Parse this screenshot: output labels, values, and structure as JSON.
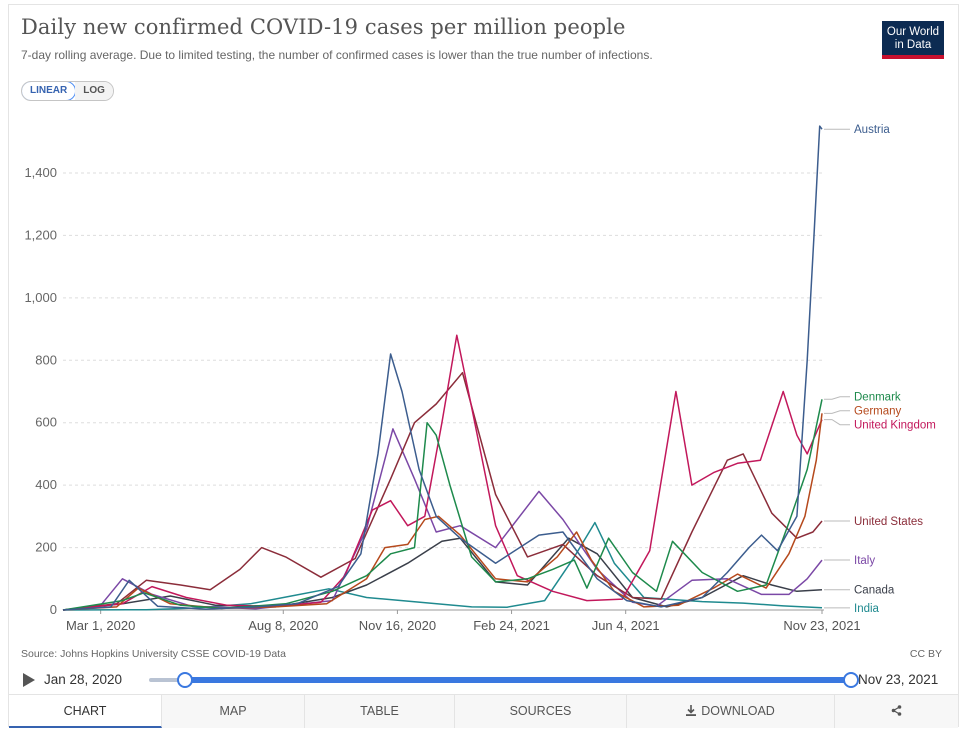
{
  "header": {
    "title": "Daily new confirmed COVID-19 cases per million people",
    "subtitle": "7-day rolling average. Due to limited testing, the number of confirmed cases is lower than the true number of infections.",
    "logo_line1": "Our World",
    "logo_line2": "in Data"
  },
  "scale_toggle": {
    "linear": "LINEAR",
    "log": "LOG",
    "selected": "LINEAR"
  },
  "footer": {
    "source": "Source: Johns Hopkins University CSSE COVID-19 Data",
    "license": "CC BY"
  },
  "timeline": {
    "start": "Jan 28, 2020",
    "end": "Nov 23, 2021"
  },
  "tabs": {
    "chart": "CHART",
    "map": "MAP",
    "table": "TABLE",
    "sources": "SOURCES",
    "download": "DOWNLOAD"
  },
  "chart_data": {
    "type": "line",
    "title": "Daily new confirmed COVID-19 cases per million people",
    "ylim": [
      0,
      1560
    ],
    "y_ticks": [
      0,
      200,
      400,
      600,
      800,
      1000,
      1200,
      1400
    ],
    "y_tick_labels": [
      "0",
      "200",
      "400",
      "600",
      "800",
      "1,000",
      "1,200",
      "1,400"
    ],
    "x_tick_labels": [
      "Mar 1, 2020",
      "Aug 8, 2020",
      "Nov 16, 2020",
      "Feb 24, 2021",
      "Jun 4, 2021",
      "Nov 23, 2021"
    ],
    "x_ticks": [
      "2020-03-01",
      "2020-08-08",
      "2020-11-16",
      "2021-02-24",
      "2021-06-04",
      "2021-11-23"
    ],
    "x_range": [
      "2020-01-28",
      "2021-11-23"
    ],
    "grid": true,
    "legend": "right-end labels",
    "series": [
      {
        "name": "Austria",
        "color": "#3c5d8e",
        "points": [
          [
            "2020-01-28",
            0
          ],
          [
            "2020-03-10",
            10
          ],
          [
            "2020-03-26",
            95
          ],
          [
            "2020-04-20",
            12
          ],
          [
            "2020-06-01",
            3
          ],
          [
            "2020-07-15",
            10
          ],
          [
            "2020-08-20",
            20
          ],
          [
            "2020-09-25",
            75
          ],
          [
            "2020-10-15",
            180
          ],
          [
            "2020-10-30",
            500
          ],
          [
            "2020-11-10",
            820
          ],
          [
            "2020-11-20",
            700
          ],
          [
            "2020-12-05",
            450
          ],
          [
            "2020-12-20",
            300
          ],
          [
            "2021-01-10",
            230
          ],
          [
            "2021-02-10",
            150
          ],
          [
            "2021-03-20",
            240
          ],
          [
            "2021-04-10",
            250
          ],
          [
            "2021-05-10",
            100
          ],
          [
            "2021-06-05",
            30
          ],
          [
            "2021-07-05",
            10
          ],
          [
            "2021-08-10",
            40
          ],
          [
            "2021-09-01",
            120
          ],
          [
            "2021-09-20",
            200
          ],
          [
            "2021-10-01",
            240
          ],
          [
            "2021-10-15",
            190
          ],
          [
            "2021-11-01",
            300
          ],
          [
            "2021-11-10",
            800
          ],
          [
            "2021-11-16",
            1200
          ],
          [
            "2021-11-21",
            1550
          ],
          [
            "2021-11-23",
            1540
          ]
        ]
      },
      {
        "name": "Denmark",
        "color": "#1e8a4c",
        "points": [
          [
            "2020-01-28",
            0
          ],
          [
            "2020-03-20",
            30
          ],
          [
            "2020-04-08",
            55
          ],
          [
            "2020-05-10",
            15
          ],
          [
            "2020-06-15",
            5
          ],
          [
            "2020-08-10",
            20
          ],
          [
            "2020-09-20",
            60
          ],
          [
            "2020-10-20",
            110
          ],
          [
            "2020-11-10",
            180
          ],
          [
            "2020-12-01",
            200
          ],
          [
            "2020-12-12",
            600
          ],
          [
            "2020-12-20",
            560
          ],
          [
            "2021-01-01",
            400
          ],
          [
            "2021-01-20",
            170
          ],
          [
            "2021-02-10",
            90
          ],
          [
            "2021-03-10",
            100
          ],
          [
            "2021-04-01",
            130
          ],
          [
            "2021-04-20",
            160
          ],
          [
            "2021-05-01",
            70
          ],
          [
            "2021-05-20",
            230
          ],
          [
            "2021-06-10",
            120
          ],
          [
            "2021-07-01",
            60
          ],
          [
            "2021-07-15",
            220
          ],
          [
            "2021-08-10",
            120
          ],
          [
            "2021-09-10",
            60
          ],
          [
            "2021-10-05",
            80
          ],
          [
            "2021-10-25",
            280
          ],
          [
            "2021-11-10",
            450
          ],
          [
            "2021-11-23",
            675
          ]
        ]
      },
      {
        "name": "Germany",
        "color": "#b5491c",
        "points": [
          [
            "2020-01-28",
            0
          ],
          [
            "2020-03-15",
            10
          ],
          [
            "2020-04-03",
            70
          ],
          [
            "2020-05-01",
            20
          ],
          [
            "2020-06-15",
            5
          ],
          [
            "2020-08-01",
            10
          ],
          [
            "2020-09-15",
            20
          ],
          [
            "2020-10-20",
            100
          ],
          [
            "2020-11-05",
            200
          ],
          [
            "2020-11-25",
            210
          ],
          [
            "2020-12-10",
            290
          ],
          [
            "2020-12-22",
            300
          ],
          [
            "2021-01-10",
            240
          ],
          [
            "2021-02-10",
            100
          ],
          [
            "2021-03-10",
            90
          ],
          [
            "2021-04-05",
            170
          ],
          [
            "2021-04-22",
            250
          ],
          [
            "2021-05-05",
            160
          ],
          [
            "2021-05-25",
            60
          ],
          [
            "2021-06-20",
            10
          ],
          [
            "2021-07-20",
            15
          ],
          [
            "2021-08-20",
            70
          ],
          [
            "2021-09-10",
            115
          ],
          [
            "2021-10-05",
            70
          ],
          [
            "2021-10-25",
            180
          ],
          [
            "2021-11-08",
            300
          ],
          [
            "2021-11-18",
            480
          ],
          [
            "2021-11-23",
            630
          ]
        ]
      },
      {
        "name": "United Kingdom",
        "color": "#c2185b",
        "points": [
          [
            "2020-01-28",
            0
          ],
          [
            "2020-03-20",
            20
          ],
          [
            "2020-04-15",
            75
          ],
          [
            "2020-05-15",
            40
          ],
          [
            "2020-06-20",
            15
          ],
          [
            "2020-08-05",
            12
          ],
          [
            "2020-09-10",
            25
          ],
          [
            "2020-10-01",
            110
          ],
          [
            "2020-10-25",
            320
          ],
          [
            "2020-11-10",
            350
          ],
          [
            "2020-11-25",
            270
          ],
          [
            "2020-12-10",
            300
          ],
          [
            "2020-12-25",
            600
          ],
          [
            "2021-01-07",
            880
          ],
          [
            "2021-01-20",
            650
          ],
          [
            "2021-02-10",
            270
          ],
          [
            "2021-03-01",
            110
          ],
          [
            "2021-04-01",
            60
          ],
          [
            "2021-05-01",
            30
          ],
          [
            "2021-06-01",
            35
          ],
          [
            "2021-06-25",
            190
          ],
          [
            "2021-07-18",
            700
          ],
          [
            "2021-08-01",
            400
          ],
          [
            "2021-08-20",
            440
          ],
          [
            "2021-09-10",
            470
          ],
          [
            "2021-09-30",
            480
          ],
          [
            "2021-10-20",
            700
          ],
          [
            "2021-11-01",
            560
          ],
          [
            "2021-11-10",
            500
          ],
          [
            "2021-11-23",
            610
          ]
        ]
      },
      {
        "name": "United States",
        "color": "#8b2d3a",
        "points": [
          [
            "2020-01-28",
            0
          ],
          [
            "2020-03-15",
            20
          ],
          [
            "2020-04-10",
            95
          ],
          [
            "2020-05-10",
            80
          ],
          [
            "2020-06-05",
            65
          ],
          [
            "2020-07-01",
            130
          ],
          [
            "2020-07-20",
            200
          ],
          [
            "2020-08-10",
            170
          ],
          [
            "2020-09-10",
            105
          ],
          [
            "2020-10-10",
            165
          ],
          [
            "2020-11-10",
            420
          ],
          [
            "2020-12-01",
            600
          ],
          [
            "2020-12-20",
            660
          ],
          [
            "2021-01-12",
            760
          ],
          [
            "2021-02-10",
            370
          ],
          [
            "2021-03-10",
            170
          ],
          [
            "2021-04-10",
            210
          ],
          [
            "2021-05-10",
            110
          ],
          [
            "2021-06-10",
            40
          ],
          [
            "2021-07-05",
            35
          ],
          [
            "2021-08-01",
            250
          ],
          [
            "2021-09-01",
            480
          ],
          [
            "2021-09-15",
            500
          ],
          [
            "2021-10-10",
            310
          ],
          [
            "2021-11-01",
            230
          ],
          [
            "2021-11-15",
            250
          ],
          [
            "2021-11-23",
            285
          ]
        ]
      },
      {
        "name": "Italy",
        "color": "#7b48a6",
        "points": [
          [
            "2020-01-28",
            0
          ],
          [
            "2020-03-01",
            15
          ],
          [
            "2020-03-20",
            100
          ],
          [
            "2020-04-15",
            50
          ],
          [
            "2020-05-20",
            12
          ],
          [
            "2020-07-15",
            4
          ],
          [
            "2020-08-20",
            18
          ],
          [
            "2020-09-20",
            30
          ],
          [
            "2020-10-20",
            260
          ],
          [
            "2020-11-12",
            580
          ],
          [
            "2020-12-01",
            420
          ],
          [
            "2020-12-20",
            250
          ],
          [
            "2021-01-10",
            270
          ],
          [
            "2021-02-10",
            200
          ],
          [
            "2021-03-20",
            380
          ],
          [
            "2021-04-10",
            290
          ],
          [
            "2021-05-10",
            130
          ],
          [
            "2021-06-10",
            25
          ],
          [
            "2021-07-01",
            12
          ],
          [
            "2021-08-01",
            95
          ],
          [
            "2021-09-01",
            100
          ],
          [
            "2021-10-01",
            50
          ],
          [
            "2021-10-25",
            50
          ],
          [
            "2021-11-10",
            100
          ],
          [
            "2021-11-23",
            160
          ]
        ]
      },
      {
        "name": "Canada",
        "color": "#3a3f4a",
        "points": [
          [
            "2020-01-28",
            0
          ],
          [
            "2020-03-20",
            20
          ],
          [
            "2020-05-01",
            45
          ],
          [
            "2020-06-10",
            15
          ],
          [
            "2020-08-01",
            10
          ],
          [
            "2020-09-20",
            40
          ],
          [
            "2020-10-20",
            80
          ],
          [
            "2020-11-25",
            150
          ],
          [
            "2020-12-25",
            220
          ],
          [
            "2021-01-10",
            230
          ],
          [
            "2021-02-10",
            90
          ],
          [
            "2021-03-10",
            80
          ],
          [
            "2021-04-15",
            230
          ],
          [
            "2021-05-10",
            180
          ],
          [
            "2021-06-10",
            40
          ],
          [
            "2021-07-10",
            10
          ],
          [
            "2021-08-10",
            40
          ],
          [
            "2021-09-15",
            110
          ],
          [
            "2021-10-10",
            80
          ],
          [
            "2021-11-01",
            60
          ],
          [
            "2021-11-23",
            65
          ]
        ]
      },
      {
        "name": "India",
        "color": "#1f8a8f",
        "points": [
          [
            "2020-01-28",
            0
          ],
          [
            "2020-04-10",
            1
          ],
          [
            "2020-05-20",
            6
          ],
          [
            "2020-07-10",
            20
          ],
          [
            "2020-08-15",
            45
          ],
          [
            "2020-09-17",
            68
          ],
          [
            "2020-10-20",
            40
          ],
          [
            "2020-11-20",
            30
          ],
          [
            "2021-01-20",
            10
          ],
          [
            "2021-02-20",
            9
          ],
          [
            "2021-03-25",
            30
          ],
          [
            "2021-04-20",
            170
          ],
          [
            "2021-05-08",
            280
          ],
          [
            "2021-05-25",
            150
          ],
          [
            "2021-06-20",
            40
          ],
          [
            "2021-08-10",
            27
          ],
          [
            "2021-09-15",
            22
          ],
          [
            "2021-10-20",
            13
          ],
          [
            "2021-11-23",
            7
          ]
        ]
      }
    ]
  }
}
